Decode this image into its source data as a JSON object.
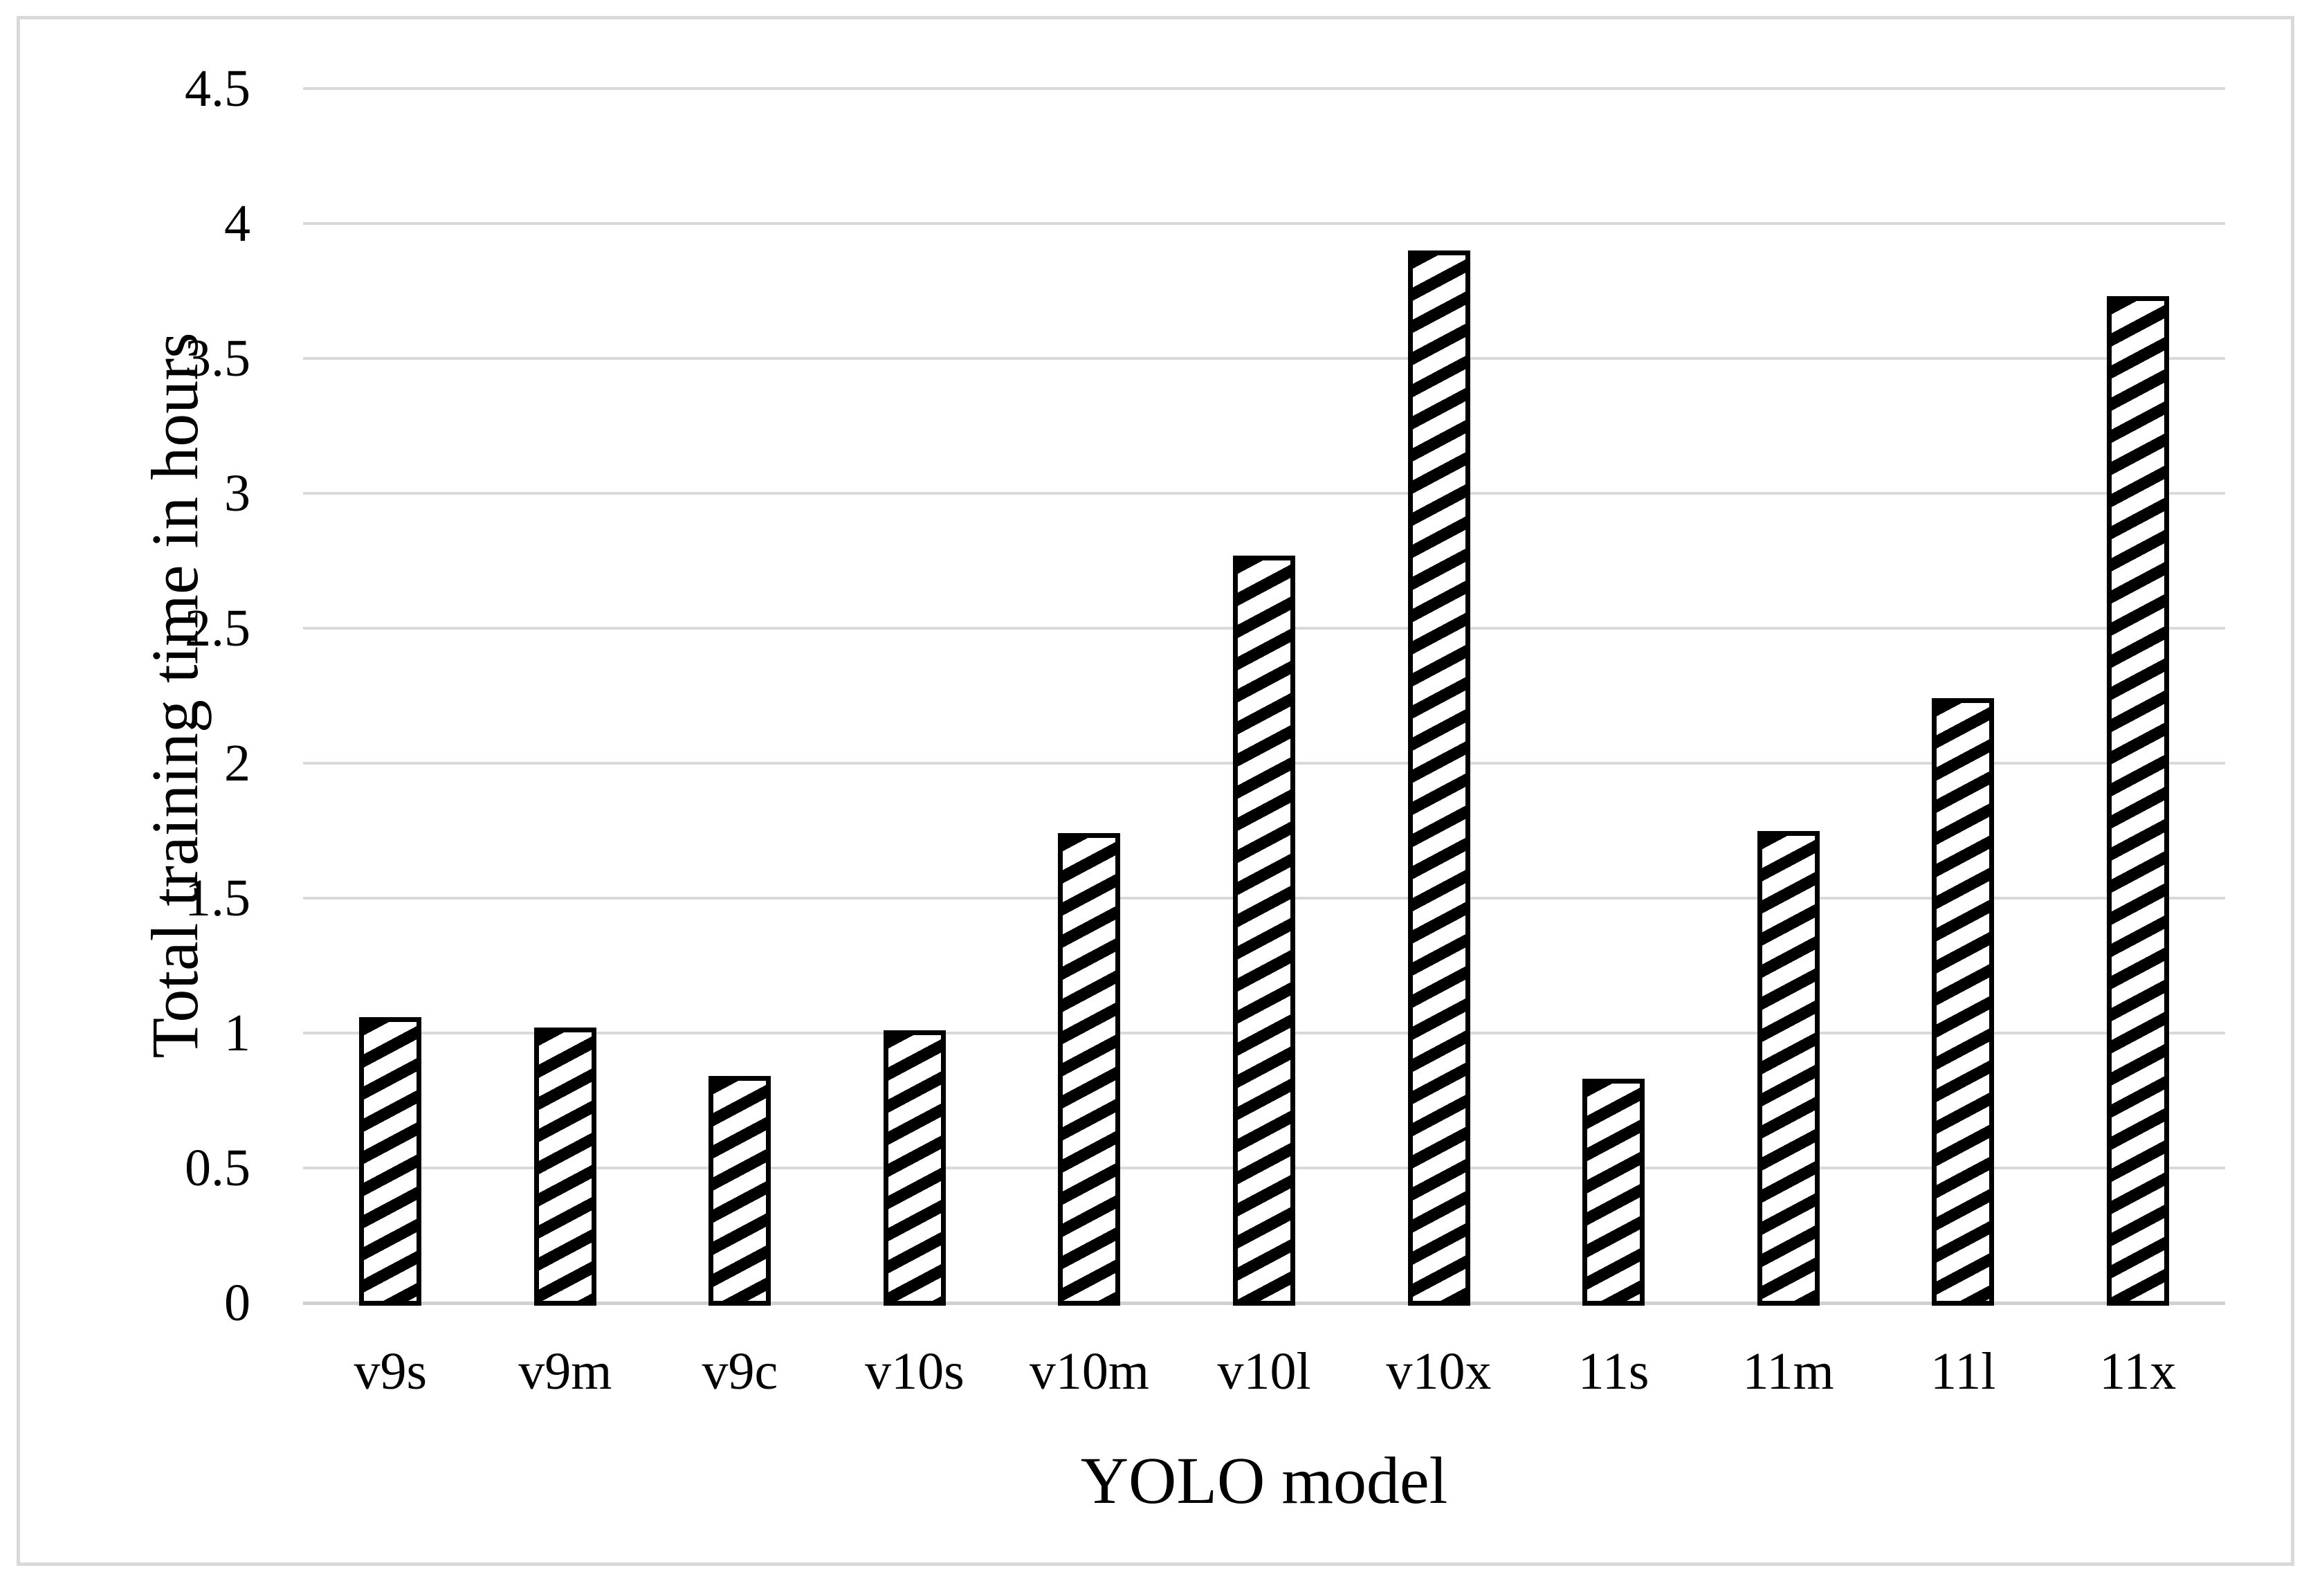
{
  "chart_data": {
    "type": "bar",
    "title": "",
    "xlabel": "YOLO model",
    "ylabel": "Total training time in hours",
    "categories": [
      "v9s",
      "v9m",
      "v9c",
      "v10s",
      "v10m",
      "v10l",
      "v10x",
      "11s",
      "11m",
      "11l",
      "11x"
    ],
    "values": [
      1.06,
      1.02,
      0.84,
      1.01,
      1.74,
      2.77,
      3.9,
      0.83,
      1.75,
      2.24,
      3.73
    ],
    "ylim": [
      0,
      4.5
    ],
    "ytick_step": 0.5,
    "ytick_labels": [
      "0",
      "0.5",
      "1",
      "1.5",
      "2",
      "2.5",
      "3",
      "3.5",
      "4",
      "4.5"
    ],
    "grid": "horizontal",
    "legend": "none",
    "bar_pattern": "black diagonal hatch (upward) on white, black outline",
    "colors": {
      "gridline": "#d9d9d9",
      "axis_line": "#d0d0d0",
      "frame_border": "#d9d9d9",
      "bar_fill": "#ffffff",
      "bar_stroke": "#000000",
      "text": "#000000",
      "background": "#ffffff"
    }
  }
}
